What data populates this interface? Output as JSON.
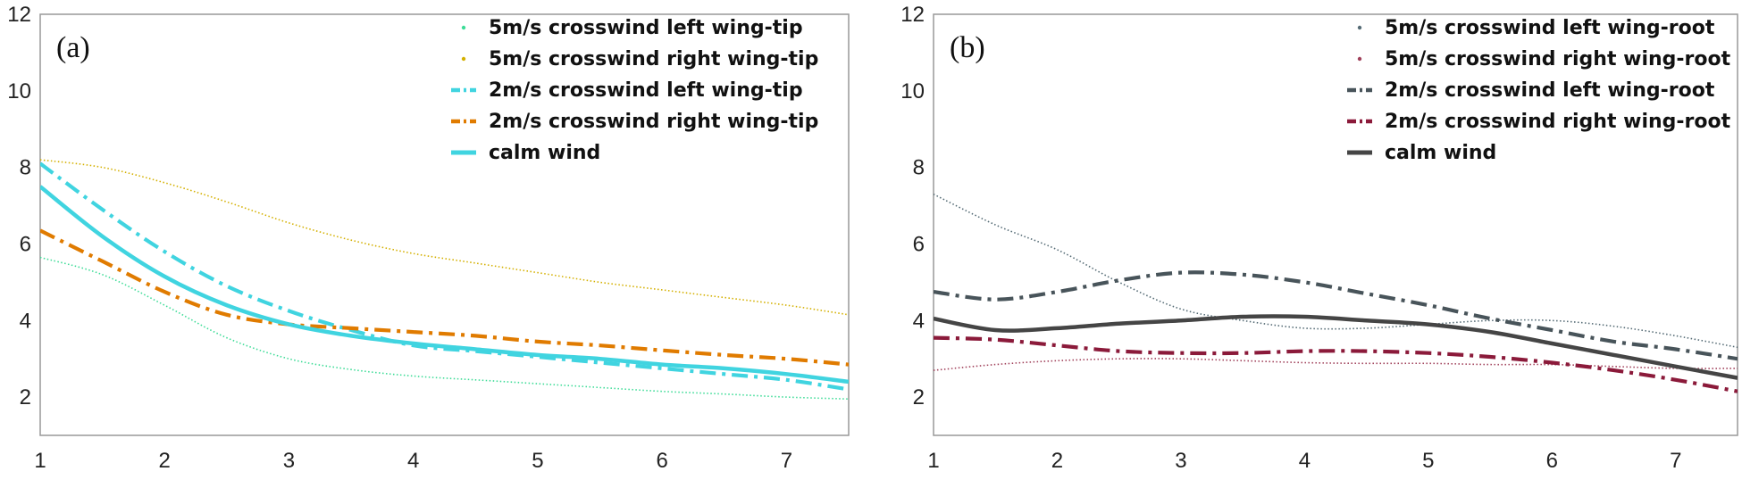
{
  "chart_data": [
    {
      "type": "line",
      "panel_label": "(a)",
      "xlim": [
        1,
        7.5
      ],
      "ylim": [
        1,
        12
      ],
      "x_ticks": [
        "1",
        "2",
        "3",
        "4",
        "5",
        "6",
        "7"
      ],
      "y_ticks": [
        "2",
        "4",
        "6",
        "8",
        "10",
        "12"
      ],
      "legend_position": "top-right",
      "series": [
        {
          "name": "5m/s crosswind left wing-tip",
          "color": "#3ddc97",
          "style": "dotted",
          "x": [
            1,
            1.5,
            2,
            2.5,
            3,
            3.5,
            4,
            4.5,
            5,
            5.5,
            6,
            6.5,
            7,
            7.5
          ],
          "y": [
            5.65,
            5.2,
            4.4,
            3.55,
            3.0,
            2.72,
            2.55,
            2.45,
            2.35,
            2.25,
            2.15,
            2.08,
            2.0,
            1.95
          ]
        },
        {
          "name": "5m/s crosswind right wing-tip",
          "color": "#d4b000",
          "style": "dotted",
          "x": [
            1,
            1.5,
            2,
            2.5,
            3,
            3.5,
            4,
            4.5,
            5,
            5.5,
            6,
            6.5,
            7,
            7.5
          ],
          "y": [
            8.2,
            8.0,
            7.6,
            7.1,
            6.55,
            6.1,
            5.75,
            5.5,
            5.25,
            5.0,
            4.8,
            4.6,
            4.4,
            4.15
          ]
        },
        {
          "name": "2m/s crosswind left wing-tip",
          "color": "#40d4e0",
          "style": "dashdot",
          "x": [
            1,
            1.5,
            2,
            2.5,
            3,
            3.5,
            4,
            4.5,
            5,
            5.5,
            6,
            6.5,
            7,
            7.5
          ],
          "y": [
            8.1,
            6.9,
            5.8,
            4.9,
            4.25,
            3.75,
            3.35,
            3.2,
            3.05,
            2.9,
            2.75,
            2.6,
            2.45,
            2.2
          ]
        },
        {
          "name": "2m/s crosswind right wing-tip",
          "color": "#e07b00",
          "style": "dashdot",
          "x": [
            1,
            1.5,
            2,
            2.5,
            3,
            3.5,
            4,
            4.5,
            5,
            5.5,
            6,
            6.5,
            7,
            7.5
          ],
          "y": [
            6.35,
            5.55,
            4.75,
            4.15,
            3.9,
            3.8,
            3.7,
            3.6,
            3.45,
            3.35,
            3.22,
            3.1,
            3.0,
            2.85
          ]
        },
        {
          "name": "calm wind",
          "color": "#40d4e0",
          "style": "solid",
          "x": [
            1,
            1.5,
            2,
            2.5,
            3,
            3.5,
            4,
            4.5,
            5,
            5.5,
            6,
            6.5,
            7,
            7.5
          ],
          "y": [
            7.5,
            6.2,
            5.15,
            4.4,
            3.9,
            3.6,
            3.4,
            3.25,
            3.1,
            3.0,
            2.85,
            2.75,
            2.6,
            2.4
          ]
        }
      ]
    },
    {
      "type": "line",
      "panel_label": "(b)",
      "xlim": [
        1,
        7.5
      ],
      "ylim": [
        1,
        12
      ],
      "x_ticks": [
        "1",
        "2",
        "3",
        "4",
        "5",
        "6",
        "7"
      ],
      "y_ticks": [
        "2",
        "4",
        "6",
        "8",
        "10",
        "12"
      ],
      "legend_position": "top-right",
      "series": [
        {
          "name": "5m/s crosswind left wing-root",
          "color": "#556b75",
          "style": "dotted",
          "x": [
            1,
            1.5,
            2,
            2.5,
            3,
            3.5,
            4,
            4.5,
            5,
            5.5,
            6,
            6.5,
            7,
            7.5
          ],
          "y": [
            7.3,
            6.5,
            5.85,
            5.0,
            4.3,
            4.0,
            3.8,
            3.8,
            3.9,
            4.0,
            4.0,
            3.85,
            3.6,
            3.3
          ]
        },
        {
          "name": "5m/s crosswind right wing-root",
          "color": "#a0405a",
          "style": "dotted",
          "x": [
            1,
            1.5,
            2,
            2.5,
            3,
            3.5,
            4,
            4.5,
            5,
            5.5,
            6,
            6.5,
            7,
            7.5
          ],
          "y": [
            2.7,
            2.85,
            2.95,
            3.0,
            3.0,
            2.95,
            2.9,
            2.88,
            2.88,
            2.85,
            2.85,
            2.8,
            2.75,
            2.75
          ]
        },
        {
          "name": "2m/s crosswind left wing-root",
          "color": "#48545a",
          "style": "dashdot",
          "x": [
            1,
            1.5,
            2,
            2.5,
            3,
            3.5,
            4,
            4.5,
            5,
            5.5,
            6,
            6.5,
            7,
            7.5
          ],
          "y": [
            4.75,
            4.55,
            4.75,
            5.05,
            5.25,
            5.2,
            5.0,
            4.7,
            4.4,
            4.05,
            3.75,
            3.45,
            3.25,
            3.0
          ]
        },
        {
          "name": "2m/s crosswind right wing-root",
          "color": "#8b1a3a",
          "style": "dashdot",
          "x": [
            1,
            1.5,
            2,
            2.5,
            3,
            3.5,
            4,
            4.5,
            5,
            5.5,
            6,
            6.5,
            7,
            7.5
          ],
          "y": [
            3.55,
            3.5,
            3.35,
            3.2,
            3.15,
            3.15,
            3.2,
            3.2,
            3.15,
            3.05,
            2.9,
            2.7,
            2.45,
            2.15
          ]
        },
        {
          "name": "calm wind",
          "color": "#454545",
          "style": "solid",
          "x": [
            1,
            1.5,
            2,
            2.5,
            3,
            3.5,
            4,
            4.5,
            5,
            5.5,
            6,
            6.5,
            7,
            7.5
          ],
          "y": [
            4.05,
            3.75,
            3.8,
            3.92,
            4.0,
            4.1,
            4.1,
            4.0,
            3.9,
            3.7,
            3.4,
            3.1,
            2.8,
            2.5
          ]
        }
      ]
    }
  ]
}
